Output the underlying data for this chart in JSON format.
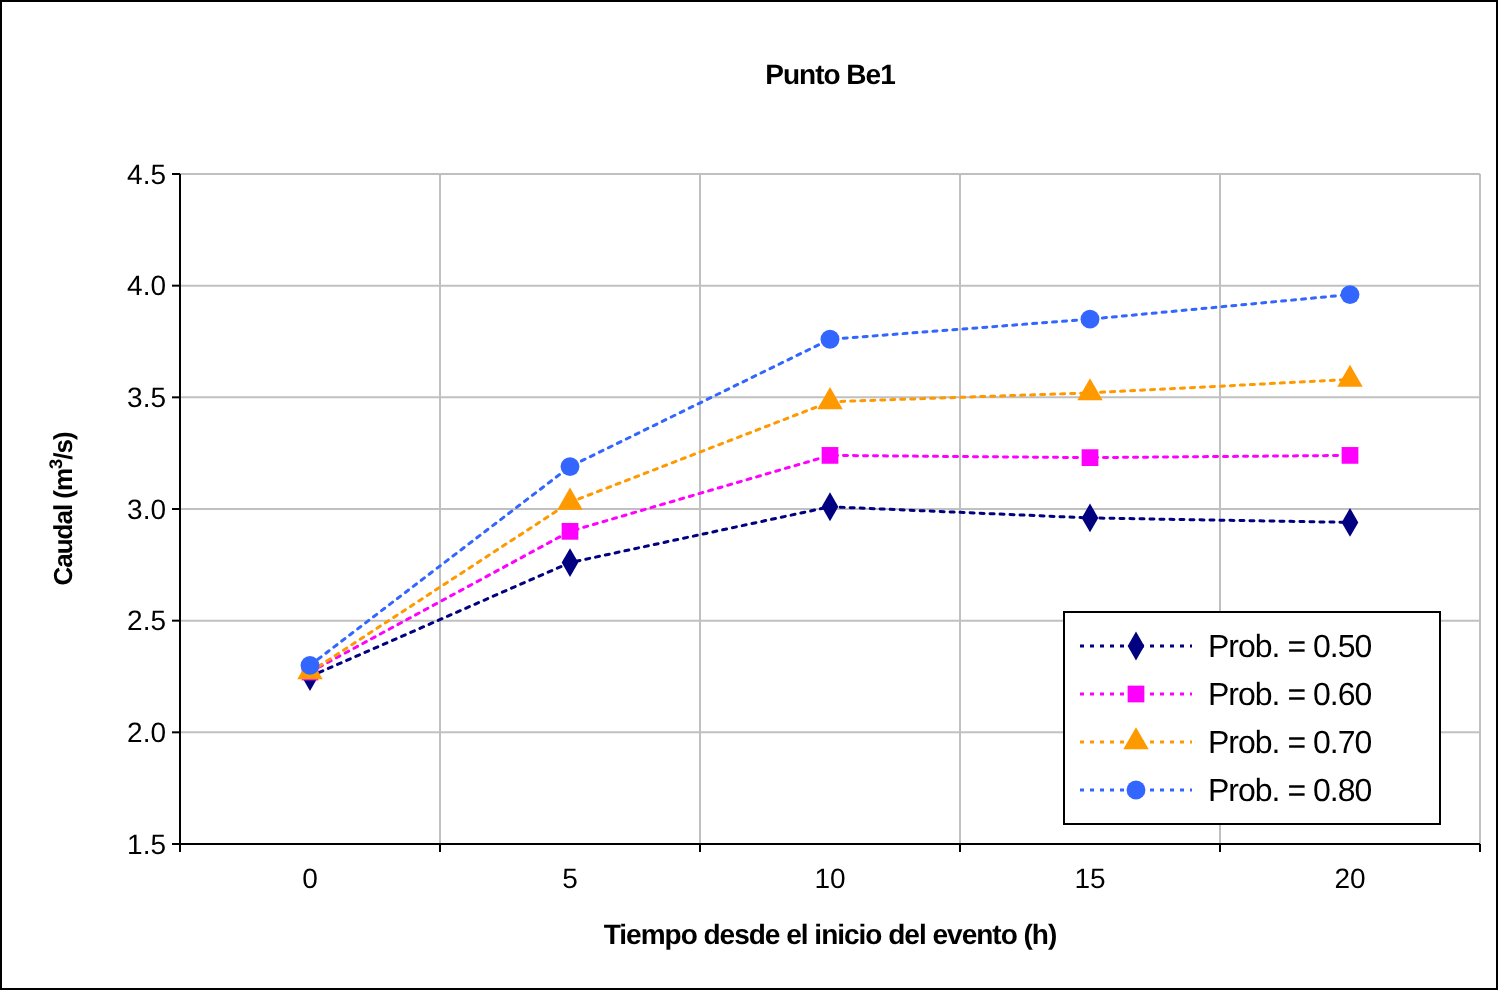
{
  "chart_data": {
    "type": "line",
    "title": "Punto Be1",
    "xlabel": "Tiempo desde el inicio del evento (h)",
    "ylabel": "Caudal (m$^{3}$/s)",
    "categories": [
      "0",
      "5",
      "10",
      "15",
      "20"
    ],
    "ylim": [
      1.5,
      4.5
    ],
    "yticks": [
      1.5,
      {
        "value": 2,
        "label": "2.0"
      },
      2.5,
      {
        "value": 3,
        "label": "3.0"
      },
      3.5,
      {
        "value": 4,
        "label": "4.0"
      },
      4.5
    ],
    "grid": true,
    "legend": "bottom right",
    "line_style": "dotted",
    "series": [
      {
        "name": "Prob. = 0.50",
        "color": "#000080",
        "marker": "diamond",
        "values": [
          2.25,
          2.76,
          3.01,
          2.96,
          2.94
        ]
      },
      {
        "name": "Prob. = 0.60",
        "color": "#ff00ff",
        "marker": "square",
        "values": [
          2.27,
          2.9,
          3.24,
          3.23,
          3.24
        ]
      },
      {
        "name": "Prob. = 0.70",
        "color": "#ff9900",
        "marker": "triangle",
        "values": [
          2.27,
          3.03,
          3.48,
          3.52,
          3.58
        ]
      },
      {
        "name": "Prob. = 0.80",
        "color": "#3366ff",
        "marker": "circle",
        "values": [
          2.3,
          3.19,
          3.76,
          3.85,
          3.96
        ]
      }
    ]
  }
}
